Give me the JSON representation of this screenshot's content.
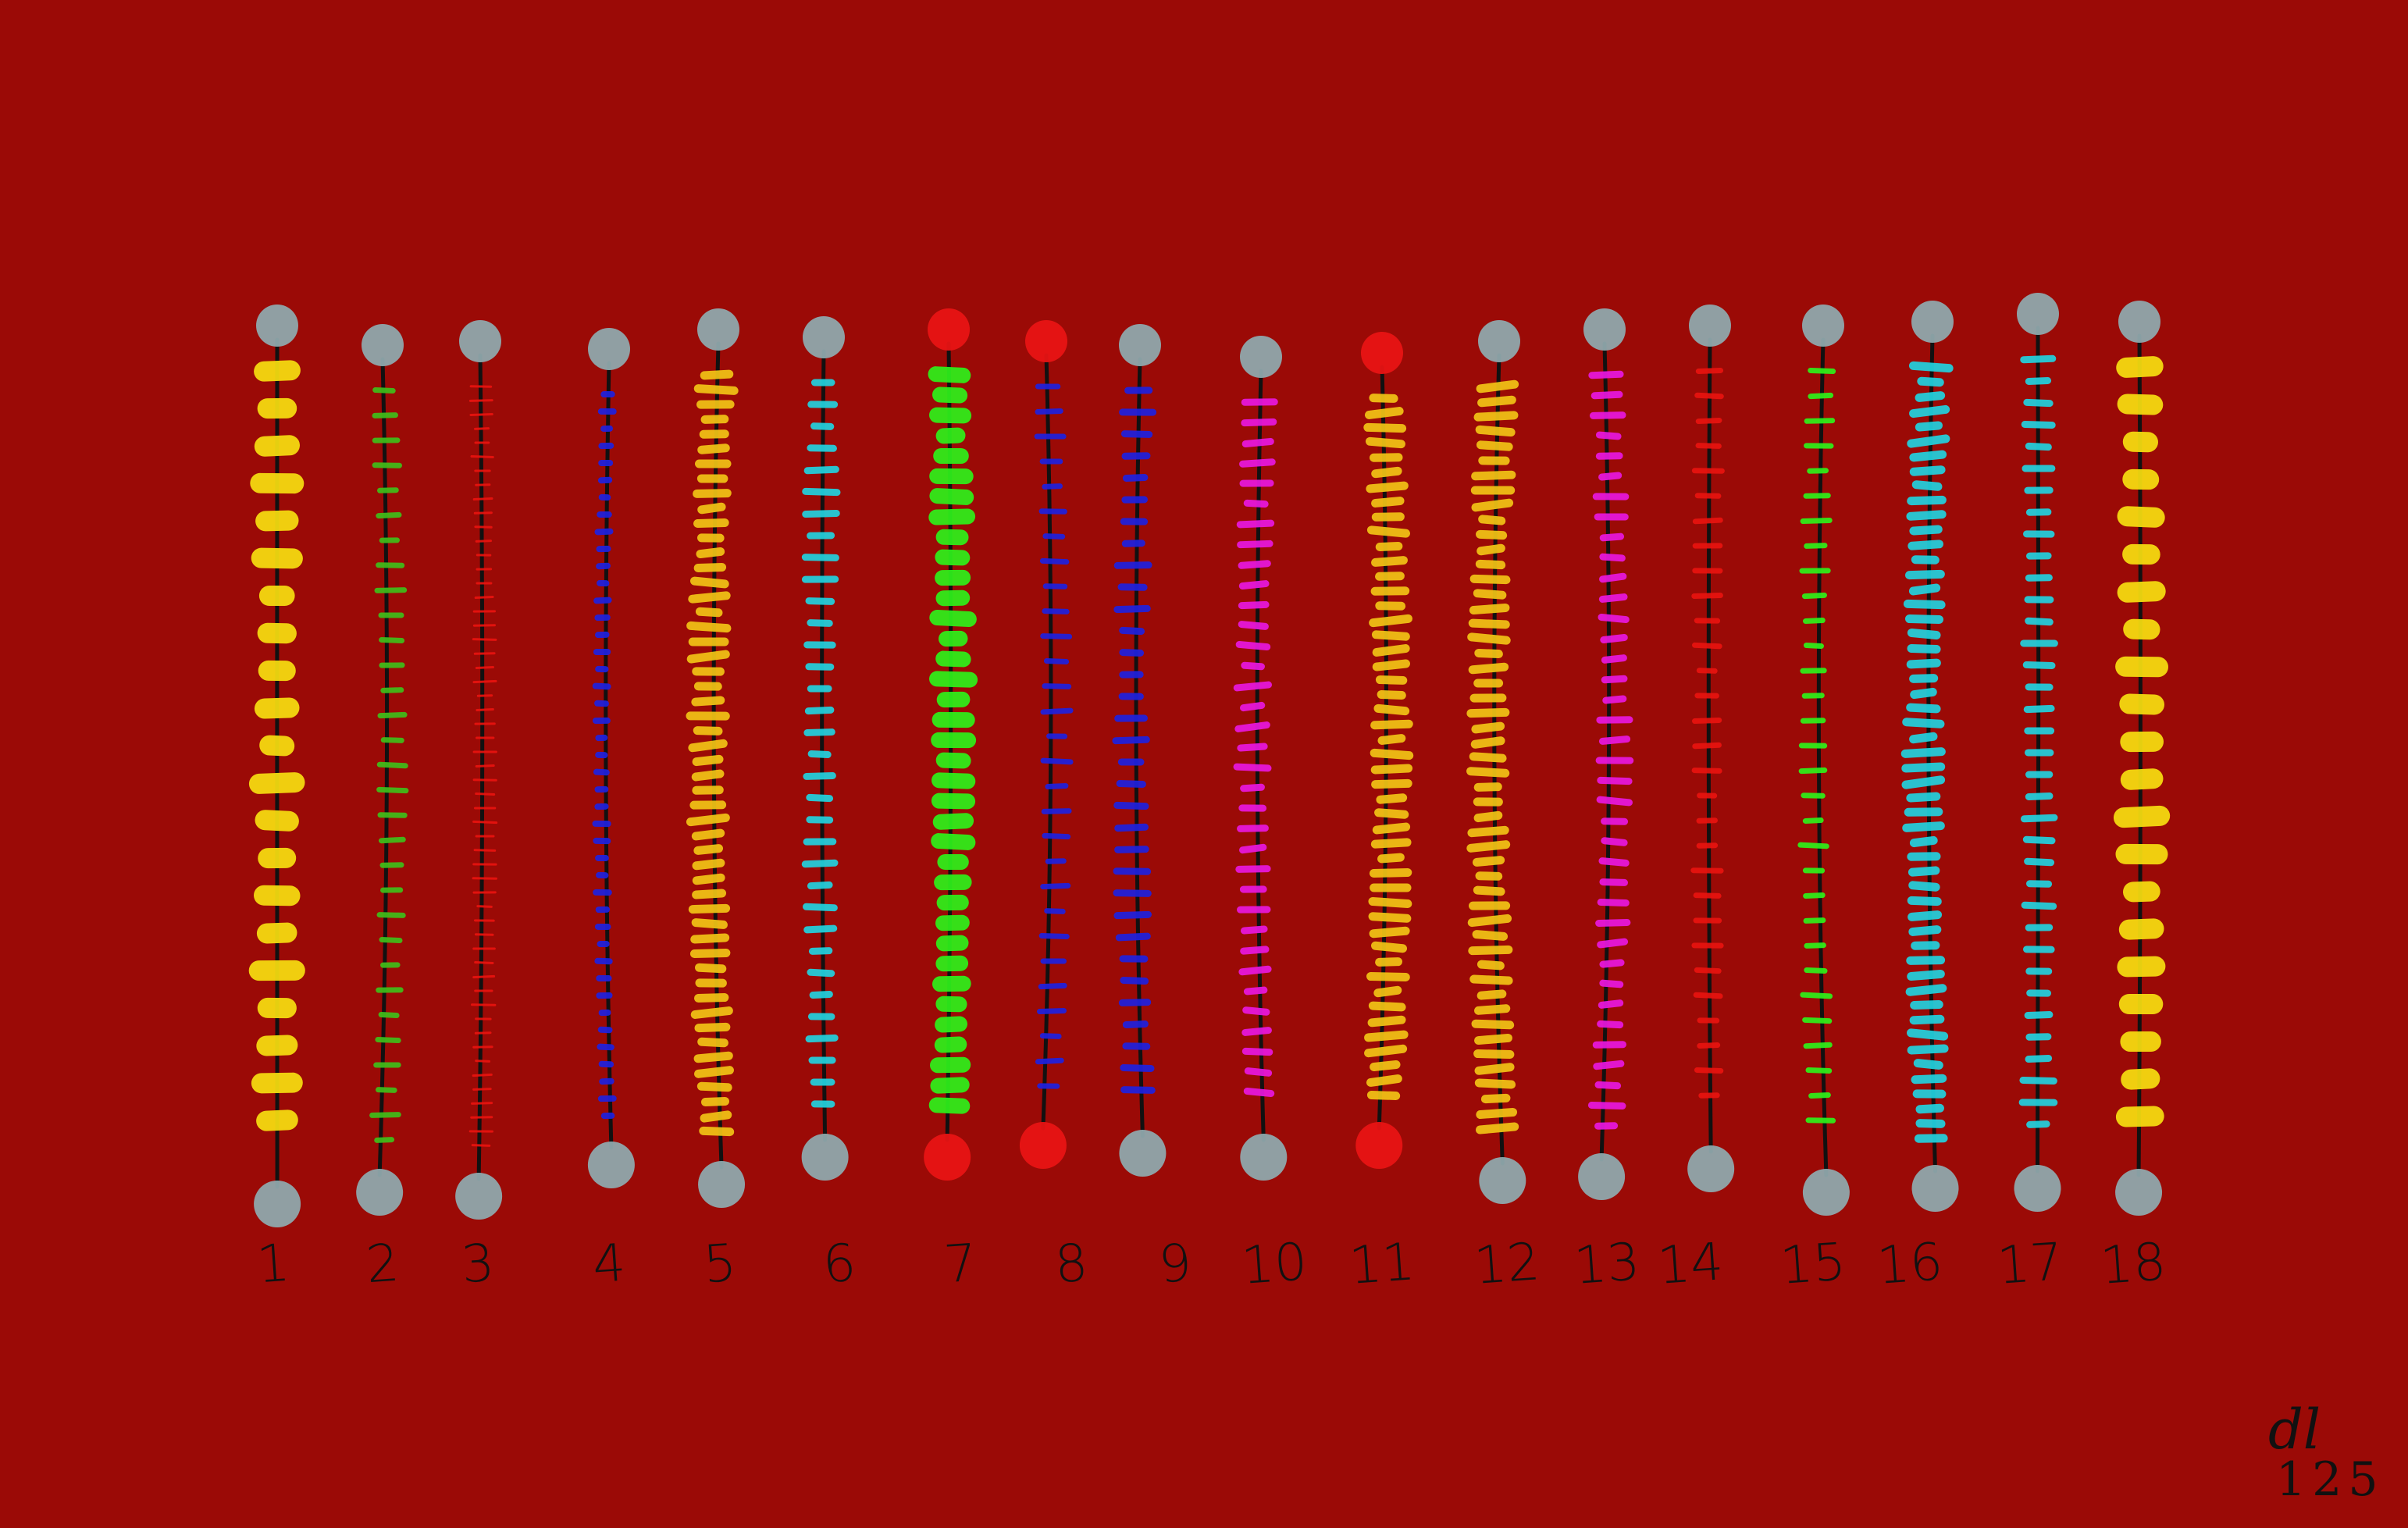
{
  "strands": [
    {
      "label": "1",
      "color": "#f7e010",
      "mark": "thick",
      "ends": "#8fa8ac"
    },
    {
      "label": "2",
      "color": "#3fbf1a",
      "mark": "thin",
      "ends": "#8fa8ac"
    },
    {
      "label": "3",
      "color": "#e8140f",
      "mark": "hair",
      "ends": "#8fa8ac"
    },
    {
      "label": "4",
      "color": "#1e22e0",
      "mark": "dots",
      "ends": "#8fa8ac"
    },
    {
      "label": "5",
      "color": "#f2c416",
      "mark": "dense",
      "ends": "#8fa8ac"
    },
    {
      "label": "6",
      "color": "#22d3e0",
      "mark": "mixed",
      "ends": "#8fa8ac"
    },
    {
      "label": "7",
      "color": "#2ef21a",
      "mark": "bold",
      "ends": "#e81414"
    },
    {
      "label": "8",
      "color": "#1e22e0",
      "mark": "thin",
      "ends": "#e81414"
    },
    {
      "label": "9",
      "color": "#1e22e0",
      "mark": "mixed",
      "ends": "#8fa8ac"
    },
    {
      "label": "10",
      "color": "#e818e0",
      "mark": "slant",
      "ends": "#8fa8ac"
    },
    {
      "label": "11",
      "color": "#f2c416",
      "mark": "dense",
      "ends": "#e81414"
    },
    {
      "label": "12",
      "color": "#f2c416",
      "mark": "dense",
      "ends": "#8fa8ac"
    },
    {
      "label": "13",
      "color": "#e818e0",
      "mark": "slant",
      "ends": "#8fa8ac"
    },
    {
      "label": "14",
      "color": "#e8140f",
      "mark": "thin",
      "ends": "#8fa8ac"
    },
    {
      "label": "15",
      "color": "#2ef21a",
      "mark": "thin",
      "ends": "#8fa8ac"
    },
    {
      "label": "16",
      "color": "#22d3e0",
      "mark": "dense",
      "ends": "#8fa8ac"
    },
    {
      "label": "17",
      "color": "#22d3e0",
      "mark": "mixed",
      "ends": "#8fa8ac"
    },
    {
      "label": "18",
      "color": "#f7e010",
      "mark": "thick",
      "ends": "#8fa8ac"
    }
  ],
  "signature": {
    "initials": "dl",
    "number": "125"
  },
  "colors": {
    "background": "#9b0a06",
    "line": "#111111"
  }
}
